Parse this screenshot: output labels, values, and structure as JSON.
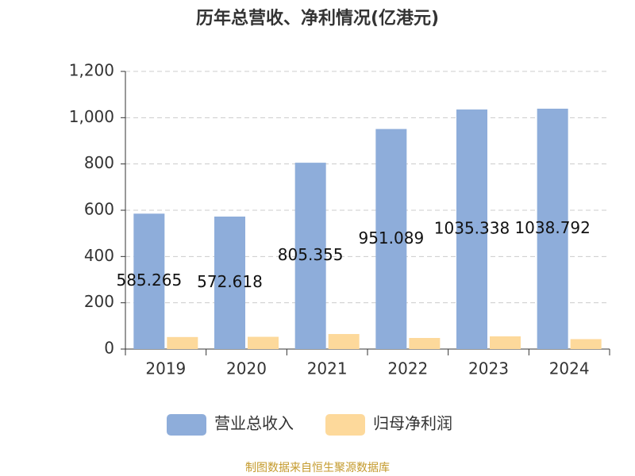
{
  "chart_data": {
    "type": "bar",
    "title": "历年总营收、净利情况(亿港元)",
    "categories": [
      "2019",
      "2020",
      "2021",
      "2022",
      "2023",
      "2024"
    ],
    "series": [
      {
        "name": "营业总收入",
        "color": "#8eadda",
        "values": [
          585.265,
          572.618,
          805.355,
          951.089,
          1035.338,
          1038.792
        ]
      },
      {
        "name": "归母净利润",
        "color": "#fdd99b",
        "values": [
          52,
          53,
          65,
          48,
          55,
          43
        ]
      }
    ],
    "ylim": [
      0,
      1200
    ],
    "yticks": [
      0,
      200,
      400,
      600,
      800,
      {
        "value": 1000,
        "label": "1,000"
      },
      {
        "value": 1200,
        "label": "1,200"
      }
    ],
    "grid": true,
    "source": "制图数据来自恒生聚源数据库"
  }
}
